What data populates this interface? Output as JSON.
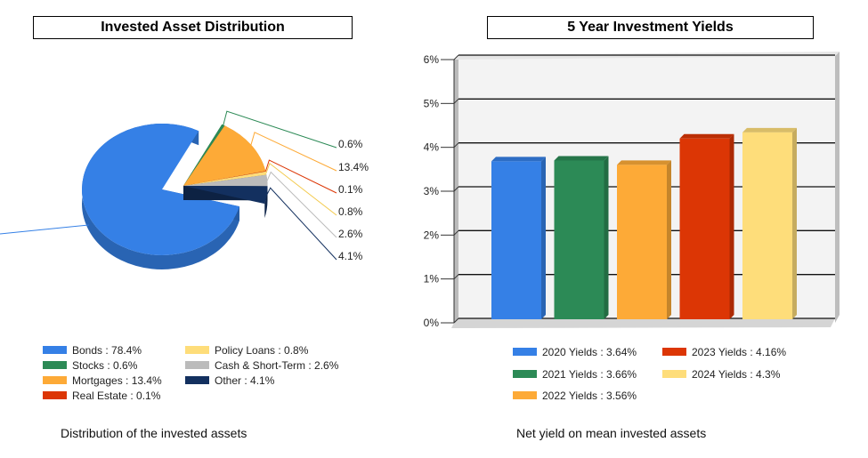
{
  "chart_data": [
    {
      "type": "pie",
      "title": "Invested Asset Distribution",
      "caption": "Distribution of the invested assets",
      "style": "3d-exploded",
      "legend_position": "bottom",
      "slices": [
        {
          "name": "Bonds",
          "value": 78.4,
          "label": "78.4%",
          "legend": "Bonds : 78.4%",
          "color": "#3580e6"
        },
        {
          "name": "Stocks",
          "value": 0.6,
          "label": "0.6%",
          "legend": "Stocks : 0.6%",
          "color": "#2c8a56"
        },
        {
          "name": "Mortgages",
          "value": 13.4,
          "label": "13.4%",
          "legend": "Mortgages : 13.4%",
          "color": "#fdaa37"
        },
        {
          "name": "Real Estate",
          "value": 0.1,
          "label": "0.1%",
          "legend": "Real Estate : 0.1%",
          "color": "#dc3605"
        },
        {
          "name": "Policy Loans",
          "value": 0.8,
          "label": "0.8%",
          "legend": "Policy Loans : 0.8%",
          "color": "#fedd7a"
        },
        {
          "name": "Cash & Short-Term",
          "value": 2.6,
          "label": "2.6%",
          "legend": "Cash & Short-Term : 2.6%",
          "color": "#bbbbbb"
        },
        {
          "name": "Other",
          "value": 4.1,
          "label": "4.1%",
          "legend": "Other : 4.1%",
          "color": "#13305f"
        }
      ]
    },
    {
      "type": "bar",
      "title": "5 Year Investment Yields",
      "caption": "Net yield on mean invested assets",
      "style": "3d",
      "ylim": [
        0,
        6
      ],
      "yticks": [
        "0%",
        "1%",
        "2%",
        "3%",
        "4%",
        "5%",
        "6%"
      ],
      "grid": true,
      "legend_position": "bottom",
      "series": [
        {
          "name": "2020 Yields",
          "value": 3.64,
          "legend": "2020 Yields : 3.64%",
          "color": "#3580e6"
        },
        {
          "name": "2021 Yields",
          "value": 3.66,
          "legend": "2021 Yields : 3.66%",
          "color": "#2c8a56"
        },
        {
          "name": "2022 Yields",
          "value": 3.56,
          "legend": "2022 Yields : 3.56%",
          "color": "#fdaa37"
        },
        {
          "name": "2023 Yields",
          "value": 4.16,
          "legend": "2023 Yields : 4.16%",
          "color": "#dc3605"
        },
        {
          "name": "2024 Yields",
          "value": 4.3,
          "legend": "2024 Yields : 4.3%",
          "color": "#fedd7a"
        }
      ]
    }
  ]
}
